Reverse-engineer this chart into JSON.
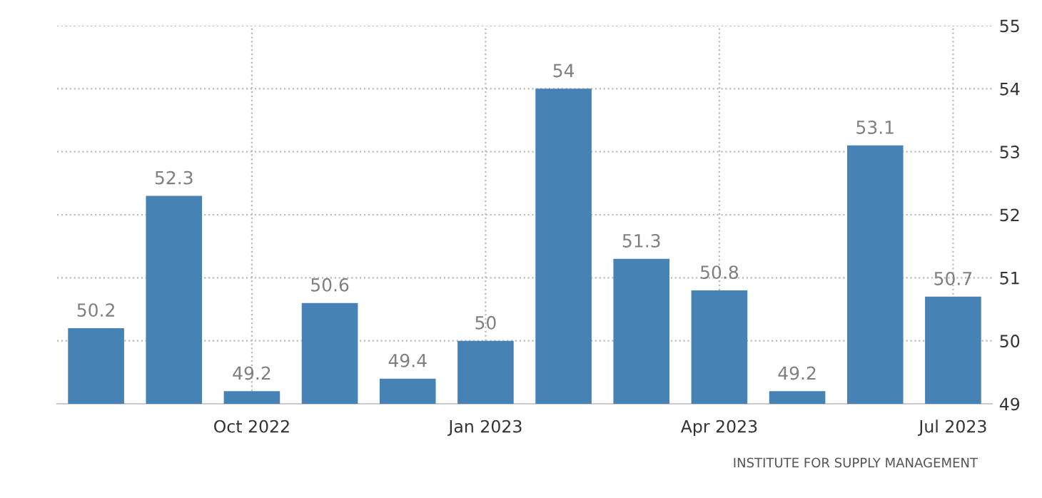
{
  "chart_data": {
    "type": "bar",
    "categories": [
      null,
      null,
      "Oct 2022",
      null,
      null,
      "Jan 2023",
      null,
      null,
      "Apr 2023",
      null,
      null,
      "Jul 2023"
    ],
    "values": [
      50.2,
      52.3,
      49.2,
      50.6,
      49.4,
      50,
      54,
      51.3,
      50.8,
      49.2,
      53.1,
      50.7
    ],
    "color": "#4682b4",
    "ylim": [
      49,
      55
    ],
    "yticks": [
      49,
      50,
      51,
      52,
      53,
      54,
      55
    ],
    "grid": true,
    "data_labels": true,
    "annotations": [
      "INSTITUTE FOR SUPPLY MANAGEMENT"
    ]
  }
}
